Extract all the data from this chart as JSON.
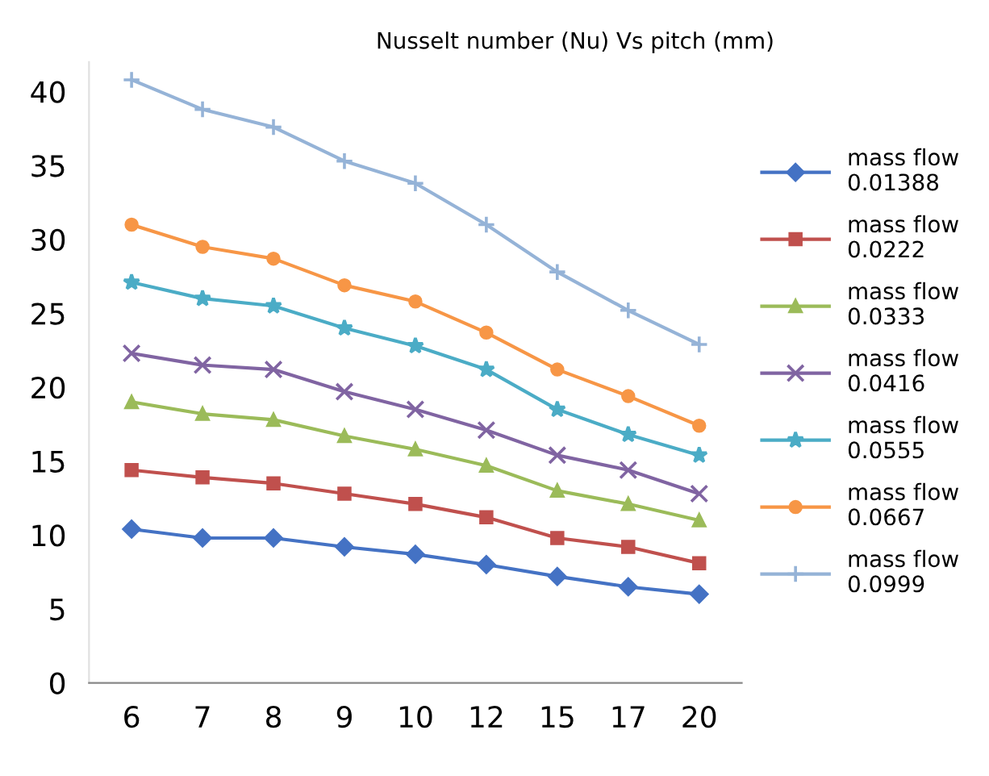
{
  "chart_data": {
    "type": "line",
    "title": "Nusselt number (Nu) Vs pitch (mm)",
    "categories": [
      "6",
      "7",
      "8",
      "9",
      "10",
      "12",
      "15",
      "17",
      "20"
    ],
    "series": [
      {
        "name": "mass flow\n0.01388",
        "color": "#4472c4",
        "marker": "diamond",
        "values": [
          10.4,
          9.8,
          9.8,
          9.2,
          8.7,
          8.0,
          7.2,
          6.5,
          6.0
        ]
      },
      {
        "name": "mass flow\n0.0222",
        "color": "#c0504d",
        "marker": "square",
        "values": [
          14.4,
          13.9,
          13.5,
          12.8,
          12.1,
          11.2,
          9.8,
          9.2,
          8.1
        ]
      },
      {
        "name": "mass flow\n0.0333",
        "color": "#9bbb59",
        "marker": "triangle",
        "values": [
          19.0,
          18.2,
          17.8,
          16.7,
          15.8,
          14.7,
          13.0,
          12.1,
          11.0
        ]
      },
      {
        "name": "mass flow\n0.0416",
        "color": "#8064a2",
        "marker": "cross",
        "values": [
          22.3,
          21.5,
          21.2,
          19.7,
          18.5,
          17.1,
          15.4,
          14.4,
          12.8
        ]
      },
      {
        "name": "mass flow\n0.0555",
        "color": "#4bacc6",
        "marker": "star",
        "values": [
          27.1,
          26.0,
          25.5,
          24.0,
          22.8,
          21.2,
          18.5,
          16.8,
          15.4
        ]
      },
      {
        "name": "mass flow\n0.0667",
        "color": "#f79646",
        "marker": "circle",
        "values": [
          31.0,
          29.5,
          28.7,
          26.9,
          25.8,
          23.7,
          21.2,
          19.4,
          17.4
        ]
      },
      {
        "name": "mass flow\n0.0999",
        "color": "#95b3d7",
        "marker": "plus",
        "values": [
          40.8,
          38.8,
          37.6,
          35.3,
          33.8,
          31.0,
          27.8,
          25.2,
          22.9
        ]
      }
    ],
    "ylim": [
      0,
      42
    ],
    "yticks": [
      0,
      5,
      10,
      15,
      20,
      25,
      30,
      35,
      40
    ],
    "grid": false,
    "legend": "right",
    "line_style": "solid"
  }
}
